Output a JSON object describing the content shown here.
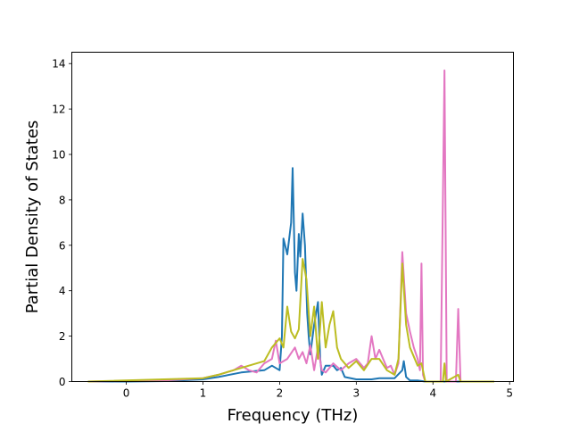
{
  "chart_data": {
    "type": "line",
    "title": "",
    "xlabel": "Frequency (THz)",
    "ylabel": "Partial Density of States",
    "xlim": [
      -0.71,
      5.05
    ],
    "ylim": [
      0,
      14.5
    ],
    "xticks": [
      0,
      1,
      2,
      3,
      4,
      5
    ],
    "xtick_labels": [
      "0",
      "1",
      "2",
      "3",
      "4",
      "5"
    ],
    "yticks": [
      0,
      2,
      4,
      6,
      8,
      10,
      12,
      14
    ],
    "ytick_labels": [
      "0",
      "2",
      "4",
      "6",
      "8",
      "10",
      "12",
      "14"
    ],
    "grid": false,
    "legend": "none",
    "series": [
      {
        "color": "#1f77b4",
        "x": [
          -0.5,
          0,
          0.5,
          1.0,
          1.2,
          1.5,
          1.8,
          1.9,
          2.0,
          2.03,
          2.05,
          2.1,
          2.15,
          2.17,
          2.2,
          2.22,
          2.25,
          2.27,
          2.3,
          2.33,
          2.36,
          2.38,
          2.4,
          2.45,
          2.5,
          2.53,
          2.55,
          2.6,
          2.7,
          2.75,
          2.8,
          2.85,
          3.0,
          3.2,
          3.3,
          3.5,
          3.6,
          3.62,
          3.65,
          3.7,
          3.8,
          3.9,
          4.8
        ],
        "y": [
          0,
          0,
          0.02,
          0.1,
          0.2,
          0.4,
          0.5,
          0.7,
          0.5,
          2,
          6.3,
          5.6,
          7.0,
          9.4,
          4.8,
          4.0,
          6.5,
          5.5,
          7.4,
          6.0,
          3.0,
          2.0,
          1.2,
          2.5,
          3.5,
          1.0,
          0.3,
          0.7,
          0.7,
          0.5,
          0.6,
          0.2,
          0.1,
          0.1,
          0.15,
          0.15,
          0.5,
          0.9,
          0.2,
          0.05,
          0.05,
          0,
          0
        ]
      },
      {
        "color": "#e377c2",
        "x": [
          -0.5,
          0.5,
          1.0,
          1.2,
          1.4,
          1.5,
          1.6,
          1.7,
          1.8,
          1.9,
          1.95,
          2.0,
          2.1,
          2.2,
          2.25,
          2.3,
          2.35,
          2.4,
          2.45,
          2.5,
          2.55,
          2.6,
          2.7,
          2.8,
          2.9,
          3.0,
          3.1,
          3.15,
          3.2,
          3.25,
          3.3,
          3.35,
          3.4,
          3.45,
          3.5,
          3.55,
          3.6,
          3.65,
          3.7,
          3.75,
          3.8,
          3.83,
          3.85,
          3.87,
          3.9,
          4.1,
          4.15,
          4.18,
          4.3,
          4.33,
          4.36,
          4.8
        ],
        "y": [
          0,
          0.05,
          0.15,
          0.3,
          0.5,
          0.7,
          0.5,
          0.4,
          0.8,
          1.0,
          1.8,
          0.8,
          1.0,
          1.5,
          1.0,
          1.3,
          0.8,
          1.6,
          0.5,
          1.5,
          0.5,
          0.4,
          0.8,
          0.5,
          0.8,
          1.0,
          0.6,
          0.8,
          2.0,
          1.0,
          1.4,
          1.0,
          0.6,
          0.7,
          0.3,
          0.8,
          5.7,
          3.0,
          2.2,
          1.5,
          1.0,
          0.5,
          5.2,
          0.3,
          0,
          0,
          13.7,
          0,
          0,
          3.2,
          0,
          0
        ]
      },
      {
        "color": "#bcbd22",
        "x": [
          -0.5,
          1.0,
          1.2,
          1.5,
          1.8,
          1.9,
          2.0,
          2.05,
          2.1,
          2.15,
          2.2,
          2.25,
          2.3,
          2.35,
          2.4,
          2.45,
          2.5,
          2.55,
          2.6,
          2.65,
          2.7,
          2.75,
          2.8,
          2.9,
          3.0,
          3.1,
          3.2,
          3.3,
          3.4,
          3.5,
          3.55,
          3.6,
          3.65,
          3.7,
          3.8,
          3.85,
          3.9,
          4.13,
          4.15,
          4.17,
          4.33,
          4.36,
          4.8
        ],
        "y": [
          0,
          0.15,
          0.3,
          0.6,
          0.9,
          1.5,
          1.9,
          1.5,
          3.3,
          2.2,
          1.9,
          2.3,
          5.4,
          4.5,
          2.0,
          3.3,
          1.0,
          3.5,
          1.5,
          2.5,
          3.1,
          1.5,
          1.0,
          0.6,
          0.9,
          0.5,
          1.0,
          1.0,
          0.5,
          0.3,
          1.0,
          5.2,
          2.5,
          1.5,
          0.7,
          0.8,
          0,
          0,
          0.8,
          0,
          0.3,
          0,
          0
        ]
      }
    ]
  }
}
